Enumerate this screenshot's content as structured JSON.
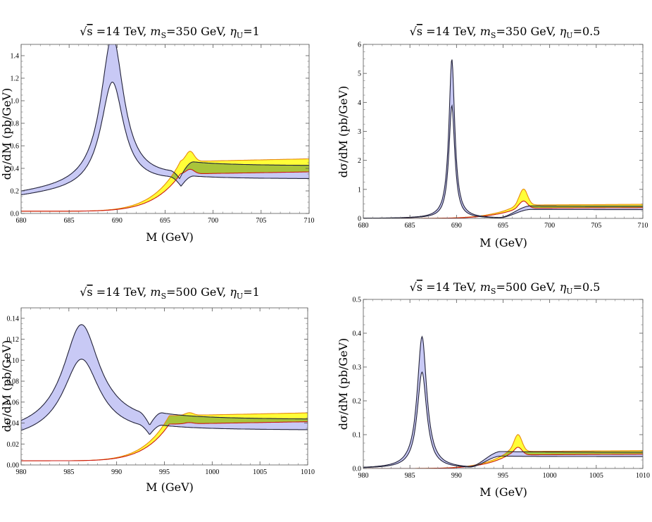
{
  "figure": {
    "colors": {
      "blue_fill": "#c8c9f5",
      "yellow_fill": "#ffff22",
      "olive_fill": "#a9c43a",
      "blue_line": "#22223a",
      "red_line": "#cc1a10",
      "orange_line": "#e88a10"
    }
  },
  "chart_data": [
    {
      "type": "area",
      "title": "√s =14 TeV, mS=350 GeV, ηU=1",
      "title_parts": {
        "sqrt": "√",
        "s": "s",
        "energy": " =14 TeV, ",
        "m": "m",
        "m_sub": "S",
        "mass": "=350 GeV, ",
        "eta": "η",
        "eta_sub": "U",
        "eta_val": "=1"
      },
      "xlabel": "M (GeV)",
      "ylabel": "dσ/dM (pb/GeV)",
      "xlim": [
        680,
        710
      ],
      "ylim": [
        0,
        1.5
      ],
      "xticks": [
        680,
        685,
        690,
        695,
        700,
        705,
        710
      ],
      "yticks": [
        "0.0",
        "0.2",
        "0.4",
        "0.6",
        "0.8",
        "1.0",
        "1.2",
        "1.4"
      ],
      "series": [
        {
          "name": "signal band (blue)",
          "center": 689.5,
          "gamma": 1.45,
          "lo_peak": 0.94,
          "hi_peak": 1.32,
          "lo_base": 0.055,
          "hi_base": 0.075,
          "lo_slope": 0.0085,
          "hi_slope": 0.009,
          "lo_plateau": 0.305,
          "hi_plateau": 0.42
        },
        {
          "name": "background band (yellow)",
          "threshold": 696.6,
          "lo_plateau": 0.35,
          "hi_plateau": 0.46,
          "bump_height": 0.09,
          "bump_x": 697.6,
          "start_value": 0.02
        }
      ]
    },
    {
      "type": "area",
      "title": "√s =14 TeV, mS=350 GeV, ηU=0.5",
      "title_parts": {
        "sqrt": "√",
        "s": "s",
        "energy": " =14 TeV, ",
        "m": "m",
        "m_sub": "S",
        "mass": "=350 GeV, ",
        "eta": "η",
        "eta_sub": "U",
        "eta_val": "=0.5"
      },
      "xlabel": "M (GeV)",
      "ylabel": "dσ/dM (pb/GeV)",
      "xlim": [
        680,
        710
      ],
      "ylim": [
        0,
        6
      ],
      "xticks": [
        680,
        685,
        690,
        695,
        700,
        705,
        710
      ],
      "yticks": [
        "0",
        "1",
        "2",
        "3",
        "4",
        "5",
        "6"
      ],
      "series": [
        {
          "name": "signal band (blue)",
          "center": 689.5,
          "gamma": 0.38,
          "lo_peak": 3.9,
          "hi_peak": 5.5,
          "lo_base": 0.0,
          "hi_base": 0.0,
          "lo_slope": 0.0,
          "hi_slope": 0.0,
          "lo_plateau": 0.3,
          "hi_plateau": 0.42
        },
        {
          "name": "background band (yellow)",
          "threshold": 696.6,
          "lo_plateau": 0.35,
          "hi_plateau": 0.46,
          "bump_height": 0.55,
          "bump_x": 697.2,
          "start_value": 0.0
        }
      ]
    },
    {
      "type": "area",
      "title": "√s =14 TeV, mS=500 GeV, ηU=1",
      "title_parts": {
        "sqrt": "√",
        "s": "s",
        "energy": " =14 TeV, ",
        "m": "m",
        "m_sub": "S",
        "mass": "=500 GeV, ",
        "eta": "η",
        "eta_sub": "U",
        "eta_val": "=1"
      },
      "xlabel": "M (GeV)",
      "ylabel": "dσ/dM (pb/GeV)",
      "xlim": [
        980,
        1010
      ],
      "ylim": [
        0,
        0.15
      ],
      "xticks": [
        980,
        985,
        990,
        995,
        1000,
        1005,
        1010
      ],
      "yticks": [
        "0.00",
        "0.02",
        "0.04",
        "0.06",
        "0.08",
        "0.10",
        "0.12",
        "0.14"
      ],
      "series": [
        {
          "name": "signal band (blue)",
          "center": 986.3,
          "gamma": 2.3,
          "lo_peak": 0.072,
          "hi_peak": 0.098,
          "lo_base": 0.015,
          "hi_base": 0.02,
          "lo_slope": 0.0007,
          "hi_slope": 0.0008,
          "lo_plateau": 0.033,
          "hi_plateau": 0.043
        },
        {
          "name": "background band (yellow)",
          "threshold": 995.5,
          "lo_plateau": 0.039,
          "hi_plateau": 0.047,
          "bump_height": 0.0025,
          "bump_x": 997.6,
          "start_value": 0.004
        }
      ]
    },
    {
      "type": "area",
      "title": "√s =14 TeV, mS=500 GeV, ηU=0.5",
      "title_parts": {
        "sqrt": "√",
        "s": "s",
        "energy": " =14 TeV, ",
        "m": "m",
        "m_sub": "S",
        "mass": "=500 GeV, ",
        "eta": "η",
        "eta_sub": "U",
        "eta_val": "=0.5"
      },
      "xlabel": "M (GeV)",
      "ylabel": "dσ/dM (pb/GeV)",
      "xlim": [
        980,
        1010
      ],
      "ylim": [
        0,
        0.5
      ],
      "xticks": [
        980,
        985,
        990,
        995,
        1000,
        1005,
        1010
      ],
      "yticks": [
        "0.0",
        "0.1",
        "0.2",
        "0.3",
        "0.4",
        "0.5"
      ],
      "series": [
        {
          "name": "signal band (blue)",
          "center": 986.3,
          "gamma": 0.62,
          "lo_peak": 0.285,
          "hi_peak": 0.39,
          "lo_base": 0.0,
          "hi_base": 0.0,
          "lo_slope": 0.0,
          "hi_slope": 0.0,
          "lo_plateau": 0.035,
          "hi_plateau": 0.048
        },
        {
          "name": "background band (yellow)",
          "threshold": 995.6,
          "lo_plateau": 0.04,
          "hi_plateau": 0.05,
          "bump_height": 0.05,
          "bump_x": 996.6,
          "start_value": 0.0
        }
      ]
    }
  ]
}
